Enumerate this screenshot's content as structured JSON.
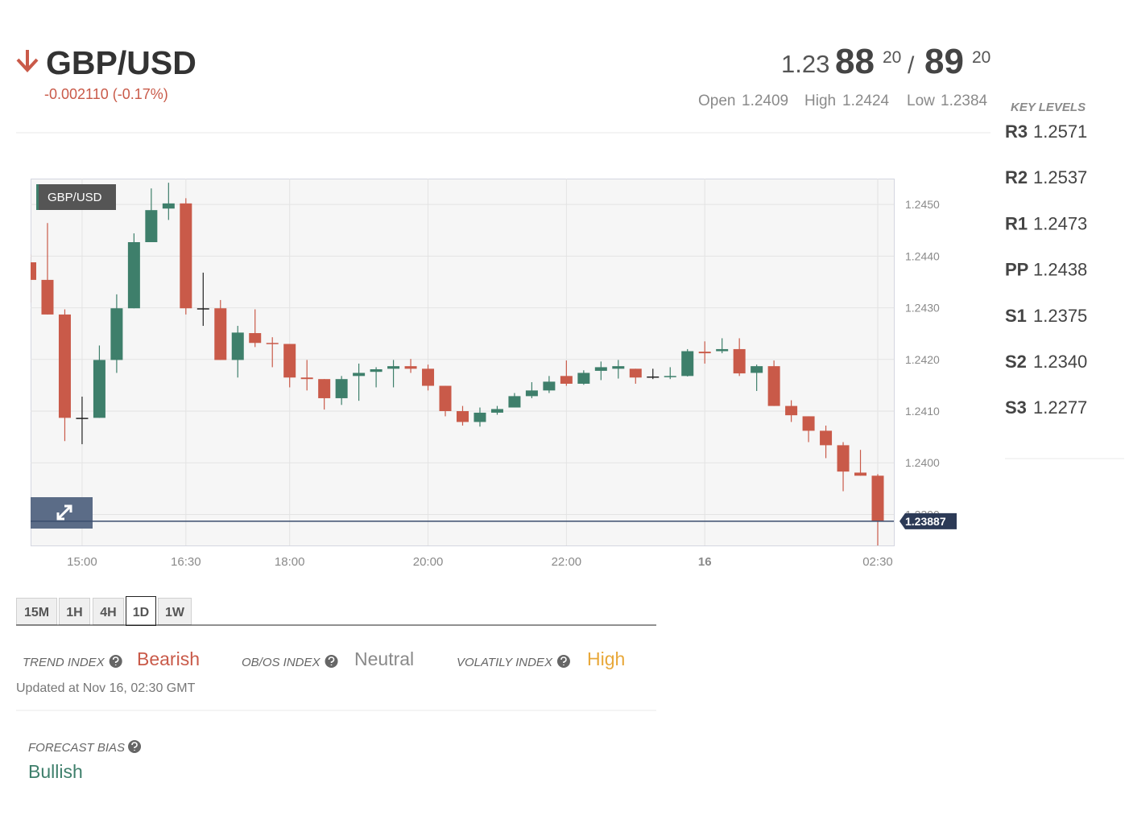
{
  "header": {
    "symbol": "GBP/USD",
    "change": "-0.002110 (-0.17%)",
    "bid_prefix": "1.23",
    "bid_big": "88",
    "bid_small": "20",
    "separator": "/",
    "ask_big": "89",
    "ask_small": "20",
    "stats": [
      {
        "label": "Open",
        "value": "1.2409"
      },
      {
        "label": "High",
        "value": "1.2424"
      },
      {
        "label": "Low",
        "value": "1.2384"
      }
    ]
  },
  "key_levels": {
    "title": "KEY LEVELS",
    "levels": [
      {
        "name": "R3",
        "value": "1.2571"
      },
      {
        "name": "R2",
        "value": "1.2537"
      },
      {
        "name": "R1",
        "value": "1.2473"
      },
      {
        "name": "PP",
        "value": "1.2438"
      },
      {
        "name": "S1",
        "value": "1.2375"
      },
      {
        "name": "S2",
        "value": "1.2340"
      },
      {
        "name": "S3",
        "value": "1.2277"
      }
    ]
  },
  "chart_data": {
    "type": "candlestick",
    "title": "GBP/USD",
    "up_color": "#3e7f6b",
    "down_color": "#c95a49",
    "flat_color": "#222222",
    "last_price": 1.23887,
    "grid": true,
    "categories": [
      null,
      null,
      null,
      "15:00",
      null,
      null,
      null,
      null,
      null,
      "16:30",
      null,
      null,
      null,
      null,
      null,
      "18:00",
      null,
      null,
      null,
      null,
      null,
      null,
      null,
      "20:00",
      null,
      null,
      null,
      null,
      null,
      null,
      null,
      "22:00",
      null,
      null,
      null,
      null,
      null,
      null,
      null,
      "16",
      null,
      null,
      null,
      null,
      null,
      null,
      null,
      null,
      null,
      "02:30"
    ],
    "open": [
      1.24388,
      1.24354,
      1.24287,
      1.24087,
      1.24087,
      1.24199,
      1.24299,
      1.24427,
      1.24492,
      1.24502,
      1.24299,
      1.24299,
      1.24199,
      1.24251,
      1.24232,
      1.2423,
      1.24165,
      1.24162,
      1.24125,
      1.24168,
      1.24176,
      1.24182,
      1.24187,
      1.24182,
      1.24149,
      1.241,
      1.24079,
      1.24097,
      1.24107,
      1.24129,
      1.2414,
      1.24168,
      1.24153,
      1.24178,
      1.24182,
      1.24182,
      1.24167,
      1.24167,
      1.24168,
      1.24215,
      1.24216,
      1.2422,
      1.24174,
      1.24187,
      1.2411,
      1.2409,
      1.24062,
      1.24034,
      1.23981,
      1.23975
    ],
    "high": [
      1.24403,
      1.24464,
      1.24297,
      1.24128,
      1.24227,
      1.24326,
      1.24444,
      1.24531,
      1.24542,
      1.24512,
      1.24368,
      1.24315,
      1.24265,
      1.24297,
      1.24243,
      1.2423,
      1.24199,
      1.24162,
      1.24168,
      1.24192,
      1.24185,
      1.24199,
      1.24201,
      1.2419,
      1.24149,
      1.2411,
      1.24107,
      1.2411,
      1.24135,
      1.24156,
      1.24168,
      1.24198,
      1.24179,
      1.24196,
      1.24199,
      1.24182,
      1.24182,
      1.24185,
      1.2422,
      1.24235,
      1.24241,
      1.24241,
      1.2419,
      1.24198,
      1.24121,
      1.2409,
      1.24072,
      1.2404,
      1.24025,
      1.23978
    ],
    "low": [
      1.2431,
      1.24287,
      1.24042,
      1.24036,
      1.24087,
      1.24174,
      1.24299,
      1.24427,
      1.2447,
      1.24287,
      1.24265,
      1.24199,
      1.24165,
      1.24224,
      1.24185,
      1.24146,
      1.2414,
      1.24103,
      1.24112,
      1.2412,
      1.24146,
      1.24146,
      1.24174,
      1.2414,
      1.2409,
      1.24072,
      1.2407,
      1.24093,
      1.24107,
      1.24125,
      1.24135,
      1.24149,
      1.24151,
      1.2416,
      1.24163,
      1.24153,
      1.24162,
      1.24162,
      1.24167,
      1.24192,
      1.24212,
      1.24168,
      1.24139,
      1.2411,
      1.24079,
      1.2404,
      1.24009,
      1.23945,
      1.23975,
      1.23838
    ],
    "close": [
      1.24354,
      1.24287,
      1.24087,
      1.24087,
      1.24199,
      1.24299,
      1.24427,
      1.24489,
      1.24502,
      1.24299,
      1.24299,
      1.24199,
      1.24252,
      1.24232,
      1.2423,
      1.24165,
      1.24162,
      1.24125,
      1.24162,
      1.24174,
      1.24181,
      1.24187,
      1.24182,
      1.24149,
      1.241,
      1.24079,
      1.24097,
      1.24104,
      1.24129,
      1.2414,
      1.24157,
      1.24153,
      1.24174,
      1.24185,
      1.24187,
      1.24165,
      1.24167,
      1.24168,
      1.24216,
      1.24212,
      1.2422,
      1.24173,
      1.24187,
      1.2411,
      1.24092,
      1.24062,
      1.24034,
      1.23983,
      1.23975,
      1.23887
    ],
    "ylim": [
      1.2384,
      1.2455
    ],
    "yticks": [
      {
        "value": 1.239,
        "label": "1.2390"
      },
      {
        "value": 1.24,
        "label": "1.2400"
      },
      {
        "value": 1.241,
        "label": "1.2410"
      },
      {
        "value": 1.242,
        "label": "1.2420"
      },
      {
        "value": 1.243,
        "label": "1.2430"
      },
      {
        "value": 1.244,
        "label": "1.2440"
      },
      {
        "value": 1.245,
        "label": "1.2450"
      }
    ]
  },
  "timeframes": {
    "items": [
      "15M",
      "1H",
      "4H",
      "1D",
      "1W"
    ],
    "active": "1D"
  },
  "indices": [
    {
      "label": "TREND INDEX",
      "value": "Bearish",
      "color": "#c95a49"
    },
    {
      "label": "OB/OS INDEX",
      "value": "Neutral",
      "color": "#8a8a8a"
    },
    {
      "label": "VOLATILY INDEX",
      "value": "High",
      "color": "#e8a83a"
    }
  ],
  "updated": "Updated at Nov 16, 02:30 GMT",
  "forecast": {
    "label": "FORECAST BIAS",
    "value": "Bullish",
    "color": "#3e7f6b"
  }
}
